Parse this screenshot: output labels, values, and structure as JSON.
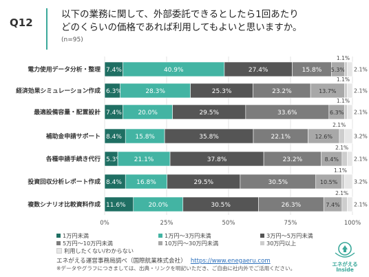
{
  "question": {
    "number": "Q12",
    "line1": "以下の業務に関して、外部委託できるとしたら1回あたり",
    "line2": "どのくらいの価格であれば利用してもよいと思いますか。",
    "n": "(n=95)"
  },
  "chart_data": {
    "type": "bar",
    "orientation": "horizontal",
    "stacked": true,
    "xlim": [
      0,
      100
    ],
    "x_ticks": [
      "0%",
      "25%",
      "50%",
      "75%",
      "100%"
    ],
    "categories": [
      "電力使用データ分析・整理",
      "経済効果シミュレーション作成",
      "最適設備容量・配置設計",
      "補助金申請サポート",
      "各種申請手続き代行",
      "投資回収分析レポート作成",
      "複数シナリオ比較資料作成"
    ],
    "series": [
      {
        "name": "1万円未満",
        "color": "#1f6f63",
        "values": [
          7.4,
          6.3,
          7.4,
          8.4,
          5.3,
          8.4,
          11.6
        ]
      },
      {
        "name": "1万円〜3万円未満",
        "color": "#43b4a3",
        "values": [
          40.9,
          28.3,
          20.0,
          15.8,
          21.1,
          16.8,
          20.0
        ]
      },
      {
        "name": "3万円〜5万円未満",
        "color": "#555555",
        "values": [
          27.4,
          25.3,
          29.5,
          35.8,
          37.8,
          29.5,
          30.5
        ]
      },
      {
        "name": "5万円〜10万円未満",
        "color": "#7c7c7c",
        "values": [
          15.8,
          23.2,
          33.6,
          22.1,
          23.2,
          30.5,
          26.3
        ]
      },
      {
        "name": "10万円〜30万円未満",
        "color": "#a8a8a8",
        "values": [
          5.3,
          13.7,
          6.3,
          12.6,
          8.4,
          10.5,
          7.4
        ]
      },
      {
        "name": "30万円以上",
        "color": "#cdcdcd",
        "values": [
          1.1,
          1.1,
          1.1,
          2.1,
          2.1,
          1.1,
          2.1
        ]
      },
      {
        "name": "利用したくない/わからない",
        "color": "#e6e6e6",
        "values": [
          2.1,
          2.1,
          2.1,
          3.2,
          2.1,
          3.2,
          2.1
        ]
      }
    ],
    "value_labels": [
      [
        "7.4%",
        "40.9%",
        "27.4%",
        "15.8%",
        "5.3%",
        "1.1%",
        "2.1%"
      ],
      [
        "6.3%",
        "28.3%",
        "25.3%",
        "23.2%",
        "13.7%",
        "1.1%",
        "2.1%"
      ],
      [
        "7.4%",
        "20.0%",
        "29.5%",
        "33.6%",
        "6.3%",
        "1.1%",
        "2.1%"
      ],
      [
        "8.4%",
        "15.8%",
        "35.8%",
        "22.1%",
        "12.6%",
        "2.1%",
        "3.2%"
      ],
      [
        "5.3%",
        "21.1%",
        "37.8%",
        "23.2%",
        "8.4%",
        "2.1%",
        "2.1%"
      ],
      [
        "8.4%",
        "16.8%",
        "29.5%",
        "30.5%",
        "10.5%",
        "1.1%",
        "3.2%"
      ],
      [
        "11.6%",
        "20.0%",
        "30.5%",
        "26.3%",
        "7.4%",
        "2.1%",
        "2.1%"
      ]
    ],
    "legend_placement": "bottom-left"
  },
  "source": {
    "text": "エネがえる運営事務局調べ（国際航業株式会社）",
    "url": "https://www.enegaeru.com"
  },
  "footnote": "※データやグラフにつきましては、出典・リンクを明記いただき、ご自由に社内外でご活用ください。",
  "logo": {
    "text_top": "エネがえる",
    "text_bottom": "Inside",
    "color": "#3aa89a"
  }
}
